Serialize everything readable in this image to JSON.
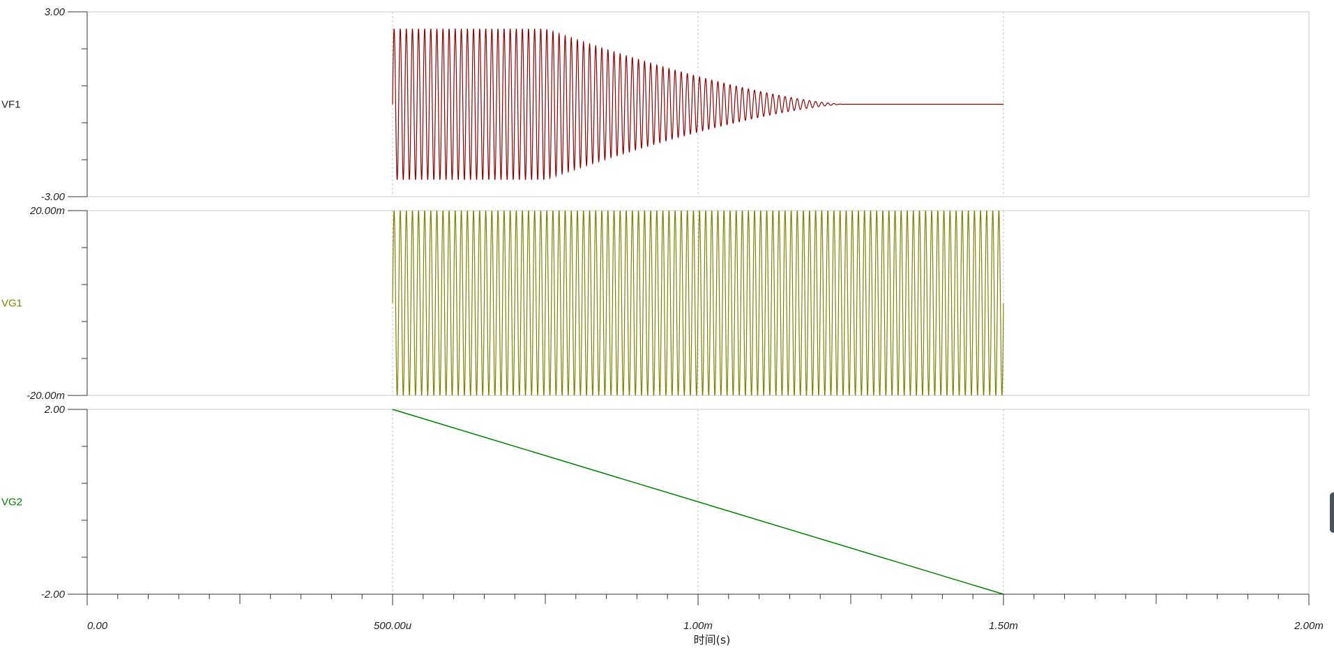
{
  "chart_data": {
    "type": "line",
    "x_axis": {
      "label": "时间(s)",
      "range": [
        0,
        0.002
      ],
      "ticks": [
        {
          "value": 0,
          "label": "0.00"
        },
        {
          "value": 0.0005,
          "label": "500.00u"
        },
        {
          "value": 0.001,
          "label": "1.00m"
        },
        {
          "value": 0.0015,
          "label": "1.50m"
        },
        {
          "value": 0.002,
          "label": "2.00m"
        }
      ]
    },
    "panels": [
      {
        "name": "VF1",
        "color": "#8b0000",
        "ylim": [
          -3,
          3
        ],
        "y_tick_labels": {
          "top": "3.00",
          "bottom": "-3.00"
        },
        "signal": {
          "kind": "decaying_sine",
          "t_start": 0.0005,
          "t_end": 0.0015,
          "amplitude": 2.45,
          "decay_start": 0.00075,
          "decay_end": 0.00124,
          "cycles_per_ms": 100
        }
      },
      {
        "name": "VG1",
        "color": "#808000",
        "ylim": [
          -0.02,
          0.02
        ],
        "y_tick_labels": {
          "top": "20.00m",
          "bottom": "-20.00m"
        },
        "signal": {
          "kind": "sine",
          "t_start": 0.0005,
          "t_end": 0.0015,
          "amplitude": 0.02,
          "cycles_per_ms": 100
        }
      },
      {
        "name": "VG2",
        "color": "#008000",
        "ylim": [
          -2,
          2
        ],
        "y_tick_labels": {
          "top": "2.00",
          "bottom": "-2.00"
        },
        "signal": {
          "kind": "ramp",
          "points": [
            {
              "x": 0.0005,
              "y": 2
            },
            {
              "x": 0.0015,
              "y": -2
            }
          ]
        }
      }
    ]
  }
}
